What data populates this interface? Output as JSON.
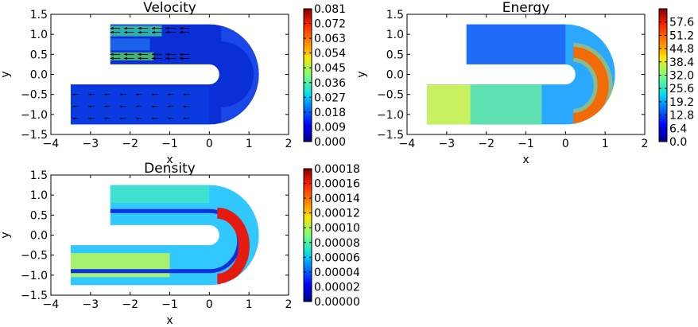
{
  "chart_data": [
    {
      "type": "heatmap",
      "name": "velocity",
      "title": "Velocity",
      "xlabel": "x",
      "ylabel": "y",
      "xlim": [
        -4,
        2
      ],
      "ylim": [
        -1.5,
        1.5
      ],
      "xticks": [
        -4,
        -3,
        -2,
        -1,
        0,
        1,
        2
      ],
      "yticks": [
        -1.5,
        -1.0,
        -0.5,
        0.0,
        0.5,
        1.0,
        1.5
      ],
      "colormap": "jet",
      "colorbar": {
        "min": 0.0,
        "max": 0.081,
        "ticks": [
          "0.000",
          "0.009",
          "0.018",
          "0.027",
          "0.036",
          "0.045",
          "0.054",
          "0.063",
          "0.072",
          "0.081"
        ]
      },
      "overlay": "vector-arrows"
    },
    {
      "type": "heatmap",
      "name": "energy",
      "title": "Energy",
      "xlabel": "x",
      "ylabel": "y",
      "xlim": [
        -4,
        2
      ],
      "ylim": [
        -1.5,
        1.5
      ],
      "xticks": [
        -4,
        -3,
        -2,
        -1,
        0,
        1,
        2
      ],
      "yticks": [
        -1.5,
        -1.0,
        -0.5,
        0.0,
        0.5,
        1.0,
        1.5
      ],
      "colormap": "jet",
      "colorbar": {
        "min": 0.0,
        "max": 64.0,
        "ticks": [
          "0.0",
          "6.4",
          "12.8",
          "19.2",
          "25.6",
          "32.0",
          "38.4",
          "44.8",
          "51.2",
          "57.6"
        ]
      }
    },
    {
      "type": "heatmap",
      "name": "density",
      "title": "Density",
      "xlabel": "x",
      "ylabel": "y",
      "xlim": [
        -4,
        2
      ],
      "ylim": [
        -1.5,
        1.5
      ],
      "xticks": [
        -4,
        -3,
        -2,
        -1,
        0,
        1,
        2
      ],
      "yticks": [
        -1.5,
        -1.0,
        -0.5,
        0.0,
        0.5,
        1.0,
        1.5
      ],
      "colormap": "jet",
      "colorbar": {
        "min": 0.0,
        "max": 0.00018,
        "ticks": [
          "0.00000",
          "0.00002",
          "0.00004",
          "0.00006",
          "0.00008",
          "0.00010",
          "0.00012",
          "0.00014",
          "0.00016",
          "0.00018"
        ]
      }
    }
  ]
}
